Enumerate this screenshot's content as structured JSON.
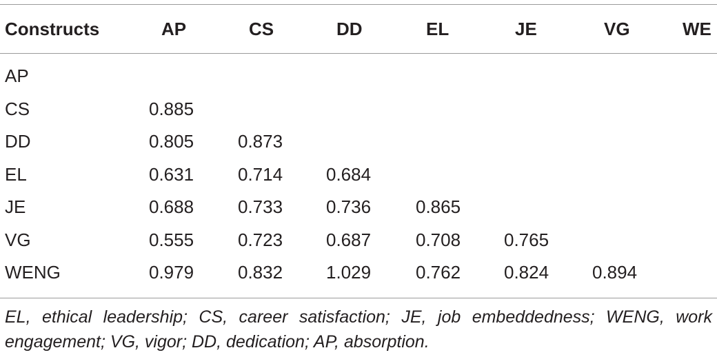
{
  "table": {
    "header": {
      "label": "Constructs",
      "columns": [
        "AP",
        "CS",
        "DD",
        "EL",
        "JE",
        "VG",
        "WE"
      ]
    },
    "rows": [
      {
        "label": "AP",
        "values": []
      },
      {
        "label": "CS",
        "values": [
          "0.885"
        ]
      },
      {
        "label": "DD",
        "values": [
          "0.805",
          "0.873"
        ]
      },
      {
        "label": "EL",
        "values": [
          "0.631",
          "0.714",
          "0.684"
        ]
      },
      {
        "label": "JE",
        "values": [
          "0.688",
          "0.733",
          "0.736",
          "0.865"
        ]
      },
      {
        "label": "VG",
        "values": [
          "0.555",
          "0.723",
          "0.687",
          "0.708",
          "0.765"
        ]
      },
      {
        "label": "WENG",
        "values": [
          "0.979",
          "0.832",
          "1.029",
          "0.762",
          "0.824",
          "0.894"
        ]
      }
    ]
  },
  "footnote": "EL, ethical leadership; CS, career satisfaction; JE, job embeddedness; WENG, work engagement; VG, vigor; DD, dedication; AP, absorption."
}
